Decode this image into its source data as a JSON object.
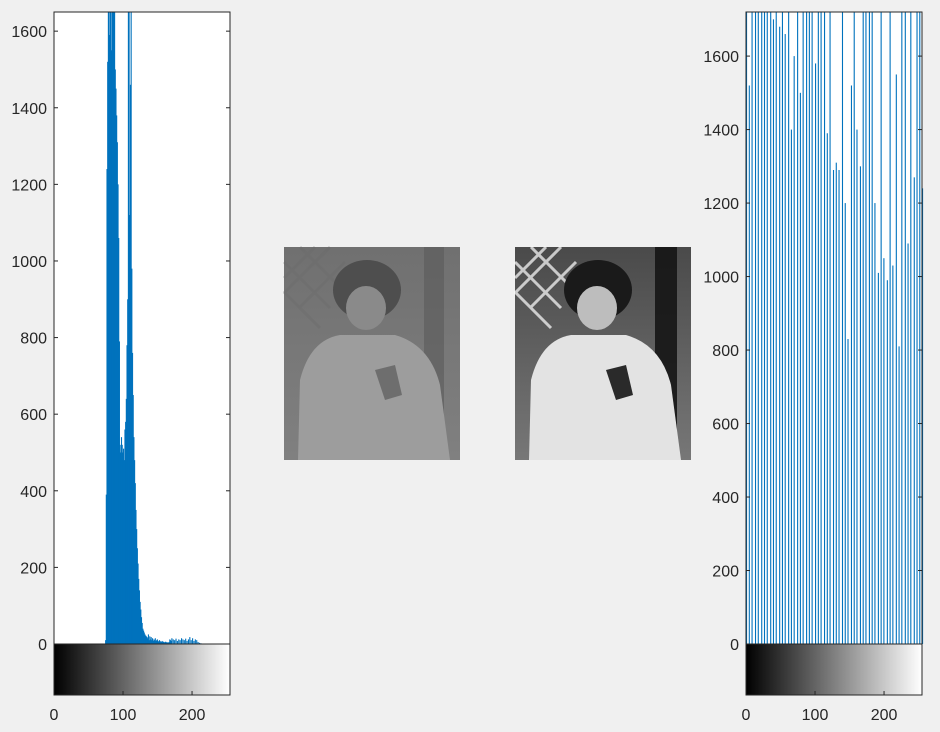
{
  "figure": {
    "background": "#f0f0f0",
    "bar_color": "#0072bd",
    "image_left_caption": "",
    "image_right_caption": ""
  },
  "chart_data": [
    {
      "type": "bar",
      "title": "",
      "xlabel": "",
      "ylabel": "",
      "xlim": [
        0,
        255
      ],
      "ylim": [
        0,
        1650
      ],
      "x_ticks": [
        0,
        100,
        200
      ],
      "y_ticks": [
        0,
        200,
        400,
        600,
        800,
        1000,
        1200,
        1400,
        1600
      ],
      "colorbar": "grayscale 0-255 below axis",
      "x": [
        74,
        75,
        76,
        77,
        78,
        79,
        80,
        81,
        82,
        83,
        84,
        85,
        86,
        87,
        88,
        89,
        90,
        91,
        92,
        93,
        94,
        95,
        96,
        97,
        98,
        99,
        100,
        101,
        102,
        103,
        104,
        105,
        106,
        107,
        108,
        109,
        110,
        111,
        112,
        113,
        114,
        115,
        116,
        117,
        118,
        119,
        120,
        121,
        122,
        123,
        124,
        125,
        126,
        127,
        128,
        129,
        130,
        131,
        132,
        133,
        134,
        135,
        136,
        137,
        138,
        139,
        140,
        141,
        142,
        143,
        144,
        145,
        146,
        147,
        148,
        149,
        150,
        151,
        152,
        153,
        154,
        155,
        156,
        157,
        158,
        159,
        160,
        161,
        162,
        163,
        164,
        165,
        166,
        167,
        168,
        169,
        170,
        172,
        174,
        176,
        178,
        180,
        182,
        184,
        186,
        188,
        190,
        192,
        194,
        196,
        198,
        200,
        202,
        204,
        206,
        208,
        210,
        212,
        214
      ],
      "values": [
        10,
        390,
        1240,
        1520,
        1650,
        1650,
        1590,
        1650,
        1550,
        1650,
        1650,
        1650,
        1650,
        1650,
        1500,
        1450,
        1380,
        1310,
        1200,
        1060,
        790,
        520,
        500,
        540,
        520,
        500,
        510,
        480,
        560,
        580,
        640,
        780,
        900,
        1650,
        1650,
        1120,
        1460,
        1650,
        980,
        760,
        650,
        540,
        480,
        420,
        350,
        300,
        250,
        210,
        170,
        140,
        110,
        90,
        70,
        55,
        40,
        35,
        30,
        25,
        22,
        20,
        18,
        15,
        25,
        10,
        20,
        12,
        18,
        10,
        15,
        8,
        12,
        10,
        15,
        8,
        10,
        12,
        8,
        6,
        10,
        8,
        5,
        6,
        8,
        5,
        6,
        4,
        5,
        6,
        4,
        5,
        3,
        4,
        5,
        12,
        10,
        8,
        15,
        12,
        10,
        14,
        8,
        12,
        10,
        15,
        12,
        10,
        14,
        8,
        12,
        18,
        10,
        15,
        8,
        12,
        10,
        5,
        3,
        2,
        1
      ]
    },
    {
      "type": "bar",
      "title": "",
      "xlabel": "",
      "ylabel": "",
      "xlim": [
        0,
        255
      ],
      "ylim": [
        0,
        1720
      ],
      "x_ticks": [
        0,
        100,
        200
      ],
      "y_ticks": [
        0,
        200,
        400,
        600,
        800,
        1000,
        1200,
        1400,
        1600
      ],
      "colorbar": "grayscale 0-255 below axis",
      "x": [
        0,
        4,
        8,
        13,
        17,
        22,
        26,
        30,
        35,
        39,
        43,
        48,
        52,
        56,
        61,
        65,
        69,
        74,
        78,
        82,
        87,
        91,
        95,
        100,
        104,
        108,
        113,
        117,
        121,
        126,
        130,
        134,
        139,
        143,
        147,
        152,
        156,
        160,
        165,
        169,
        173,
        178,
        182,
        186,
        191,
        195,
        199,
        204,
        208,
        212,
        217,
        221,
        225,
        230,
        234,
        238,
        243,
        247,
        251,
        255
      ],
      "values": [
        1720,
        1520,
        1720,
        1720,
        1720,
        1720,
        1720,
        1720,
        1720,
        1700,
        1720,
        1680,
        1720,
        1660,
        1720,
        1400,
        1600,
        1720,
        1500,
        1720,
        1720,
        1720,
        1720,
        1580,
        1720,
        1720,
        1720,
        1390,
        1720,
        1290,
        1310,
        1290,
        1720,
        1200,
        830,
        1520,
        1720,
        1400,
        1300,
        1720,
        1720,
        1720,
        1720,
        1200,
        1010,
        1720,
        1050,
        990,
        1720,
        1030,
        1550,
        810,
        1720,
        1720,
        1090,
        1720,
        1270,
        1720,
        1720,
        1240
      ]
    }
  ]
}
